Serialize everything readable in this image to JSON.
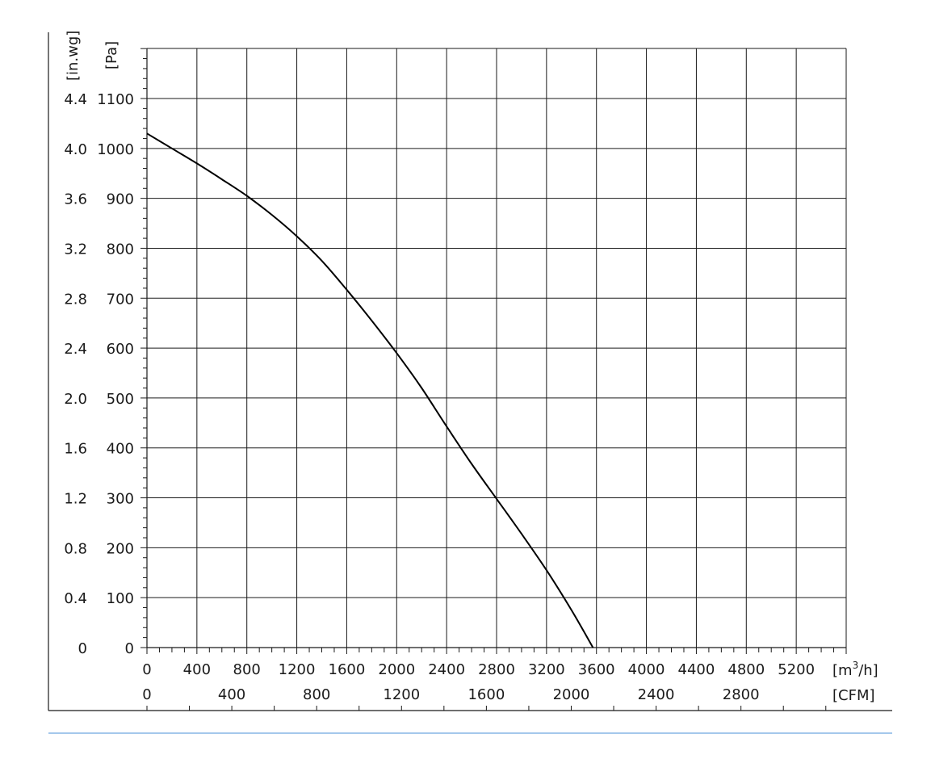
{
  "chart_data": {
    "type": "line",
    "title": "",
    "xlabel": "[m³/h]",
    "xlabel_base": "[m",
    "xlabel_sup": "3",
    "xlabel_tail": "/h]",
    "x2label": "[CFM]",
    "ylabel": "[Pa]",
    "y2label": "[in.wg]",
    "xlim": [
      0,
      5600
    ],
    "ylim": [
      0,
      1100
    ],
    "grid": true,
    "x_ticks": [
      "0",
      "400",
      "800",
      "1200",
      "1600",
      "2000",
      "2400",
      "2800",
      "3200",
      "3600",
      "4000",
      "4400",
      "4800",
      "5200"
    ],
    "x_tick_values": [
      0,
      400,
      800,
      1200,
      1600,
      2000,
      2400,
      2800,
      3200,
      3600,
      4000,
      4400,
      4800,
      5200
    ],
    "cfm_ticks": [
      "0",
      "400",
      "800",
      "1200",
      "1600",
      "2000",
      "2400",
      "2800"
    ],
    "cfm_tick_values": [
      0,
      400,
      800,
      1200,
      1600,
      2000,
      2400,
      2800
    ],
    "y_ticks": [
      "0",
      "100",
      "200",
      "300",
      "400",
      "500",
      "600",
      "700",
      "800",
      "900",
      "1000",
      "1100"
    ],
    "y_tick_values": [
      0,
      100,
      200,
      300,
      400,
      500,
      600,
      700,
      800,
      900,
      1000,
      1100
    ],
    "inwg_ticks": [
      "0",
      "0.4",
      "0.8",
      "1.2",
      "1.6",
      "2.0",
      "2.4",
      "2.8",
      "3.2",
      "3.6",
      "4.0",
      "4.4"
    ],
    "series": [
      {
        "x": [
          0,
          200,
          400,
          600,
          800,
          1000,
          1200,
          1400,
          1600,
          1800,
          2000,
          2200,
          2400,
          2600,
          2800,
          3000,
          3200,
          3400,
          3600,
          3720
        ],
        "values": [
          1030,
          1000,
          970,
          938,
          905,
          867,
          824,
          775,
          717,
          655,
          590,
          520,
          443,
          368,
          298,
          228,
          155,
          75,
          -12,
          -60
        ]
      }
    ],
    "color": "#000000",
    "footer_line_color": "#4a90d9"
  }
}
